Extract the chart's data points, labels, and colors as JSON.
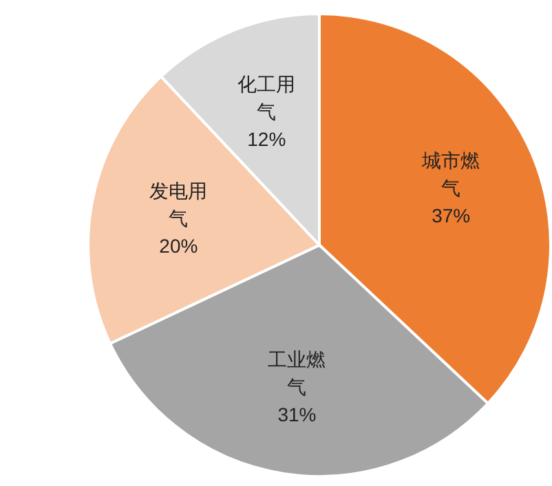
{
  "chart_data": {
    "type": "pie",
    "categories": [
      "城市燃气",
      "工业燃气",
      "发电用气",
      "化工用气"
    ],
    "values": [
      37,
      31,
      20,
      12
    ],
    "colors": [
      "#ed7d31",
      "#a5a5a5",
      "#f8cbad",
      "#d9d9d9"
    ],
    "value_labels": [
      "37%",
      "31%",
      "20%",
      "12%"
    ]
  }
}
